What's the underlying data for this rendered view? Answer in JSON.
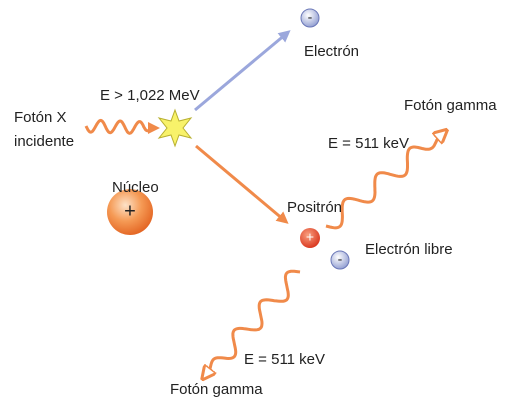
{
  "incident_photon": {
    "label_lines": [
      "Fotón X",
      "incidente"
    ],
    "energy": "E > 1,022 MeV"
  },
  "electron": {
    "label": "Electrón",
    "charge": "-"
  },
  "nucleus": {
    "label": "Núcleo",
    "charge": "+"
  },
  "positron": {
    "label": "Positrón",
    "charge": "+"
  },
  "free_electron": {
    "label": "Electrón libre",
    "charge": "-"
  },
  "gamma_photons": [
    {
      "label": "Fotón gamma",
      "energy": "E = 511 keV"
    },
    {
      "label": "Fotón gamma",
      "energy": "E = 511 keV"
    }
  ]
}
